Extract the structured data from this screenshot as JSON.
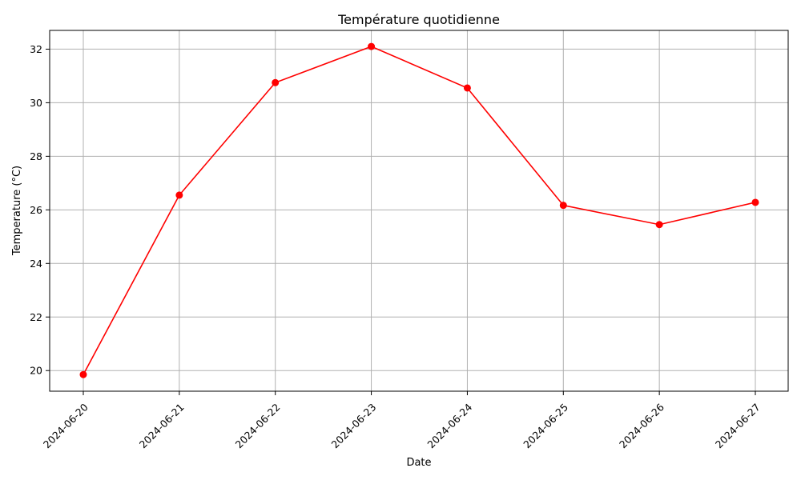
{
  "chart_data": {
    "type": "line",
    "title": "Température quotidienne",
    "xlabel": "Date",
    "ylabel": "Temperature (°C)",
    "x": [
      "2024-06-20",
      "2024-06-21",
      "2024-06-22",
      "2024-06-23",
      "2024-06-24",
      "2024-06-25",
      "2024-06-26",
      "2024-06-27"
    ],
    "series": [
      {
        "values": [
          19.85,
          26.55,
          30.75,
          32.1,
          30.55,
          26.17,
          25.45,
          26.28
        ],
        "color": "#ff0000",
        "marker": "circle"
      }
    ],
    "ylim": [
      19.23,
      32.7
    ],
    "yticks": [
      20,
      22,
      24,
      26,
      28,
      30,
      32
    ],
    "grid": true,
    "xtick_rotation": 45
  }
}
